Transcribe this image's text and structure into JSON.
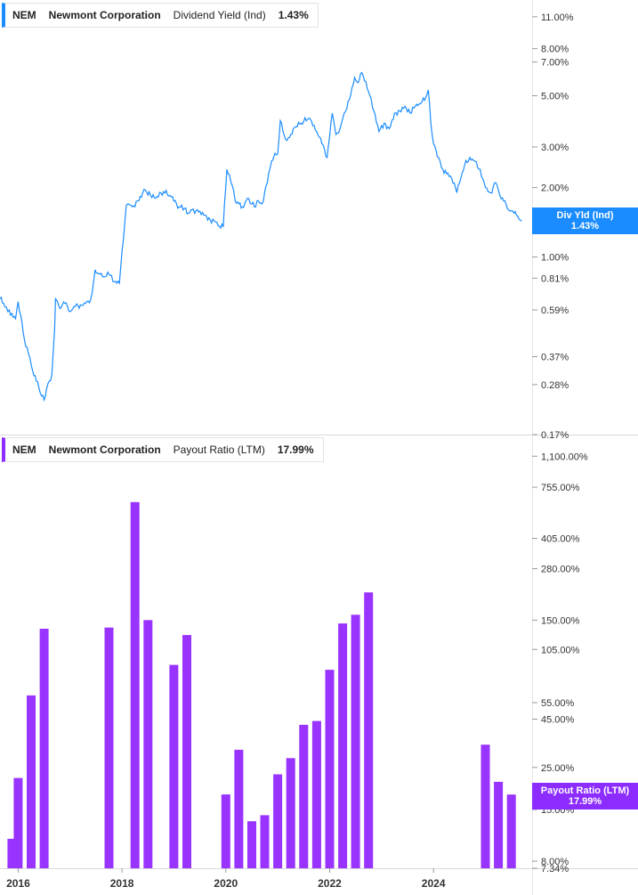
{
  "chart_data": [
    {
      "type": "line",
      "ticker": "NEM",
      "company": "Newmont Corporation",
      "metric": "Dividend Yield (Ind)",
      "current_value": "1.43%",
      "tag_label": "Div Yld (Ind)",
      "tag_value": "1.43%",
      "scale": "log",
      "ylim": [
        0.17,
        13.0
      ],
      "yticks": [
        {
          "value": 11.0,
          "label": "11.00%"
        },
        {
          "value": 8.0,
          "label": "8.00%"
        },
        {
          "value": 7.0,
          "label": "7.00%"
        },
        {
          "value": 5.0,
          "label": "5.00%"
        },
        {
          "value": 3.0,
          "label": "3.00%"
        },
        {
          "value": 2.0,
          "label": "2.00%"
        },
        {
          "value": 1.0,
          "label": "1.00%"
        },
        {
          "value": 0.81,
          "label": "0.81%"
        },
        {
          "value": 0.59,
          "label": "0.59%"
        },
        {
          "value": 0.37,
          "label": "0.37%"
        },
        {
          "value": 0.28,
          "label": "0.28%"
        },
        {
          "value": 0.17,
          "label": "0.17%"
        }
      ],
      "color": "#1a8cff",
      "series": [
        {
          "x": [
            2015.65,
            2015.72,
            2015.8,
            2015.88,
            2015.95,
            2016.0,
            2016.05,
            2016.12,
            2016.2,
            2016.28,
            2016.35,
            2016.4,
            2016.45,
            2016.5,
            2016.55,
            2016.6,
            2016.65,
            2016.7,
            2016.72,
            2016.8,
            2016.9,
            2017.0,
            2017.1,
            2017.2,
            2017.3,
            2017.4,
            2017.45,
            2017.48,
            2017.55,
            2017.65,
            2017.75,
            2017.85,
            2017.95,
            2018.08,
            2018.12,
            2018.2,
            2018.3,
            2018.45,
            2018.55,
            2018.65,
            2018.8,
            2018.95,
            2019.1,
            2019.2,
            2019.28,
            2019.35,
            2019.5,
            2019.6,
            2019.7,
            2019.8,
            2019.88,
            2019.95,
            2020.02,
            2020.12,
            2020.18,
            2020.25,
            2020.32,
            2020.42,
            2020.55,
            2020.6,
            2020.7,
            2020.8,
            2020.88,
            2020.92,
            2021.0,
            2021.05,
            2021.12,
            2021.18,
            2021.25,
            2021.3,
            2021.45,
            2021.6,
            2021.75,
            2021.85,
            2021.95,
            2022.05,
            2022.12,
            2022.2,
            2022.28,
            2022.38,
            2022.48,
            2022.55,
            2022.62,
            2022.75,
            2022.85,
            2022.95,
            2023.05,
            2023.15,
            2023.25,
            2023.35,
            2023.45,
            2023.55,
            2023.65,
            2023.72,
            2023.78,
            2023.85,
            2023.9,
            2023.95,
            2024.0,
            2024.05,
            2024.1,
            2024.18,
            2024.25,
            2024.35,
            2024.45,
            2024.55,
            2024.6,
            2024.7,
            2024.8,
            2024.9,
            2025.0,
            2025.1,
            2025.2,
            2025.28,
            2025.35,
            2025.45,
            2025.55,
            2025.62,
            2025.7
          ],
          "y": [
            0.66,
            0.63,
            0.58,
            0.57,
            0.54,
            0.64,
            0.56,
            0.44,
            0.38,
            0.32,
            0.29,
            0.27,
            0.25,
            0.24,
            0.27,
            0.29,
            0.31,
            0.48,
            0.66,
            0.6,
            0.63,
            0.58,
            0.61,
            0.62,
            0.63,
            0.66,
            0.77,
            0.88,
            0.85,
            0.82,
            0.84,
            0.78,
            0.77,
            1.66,
            1.7,
            1.65,
            1.75,
            1.95,
            1.85,
            1.8,
            1.92,
            1.82,
            1.65,
            1.62,
            1.55,
            1.6,
            1.58,
            1.52,
            1.45,
            1.42,
            1.36,
            1.35,
            2.4,
            2.05,
            1.75,
            1.7,
            1.65,
            1.8,
            1.65,
            1.75,
            1.7,
            2.1,
            2.6,
            2.7,
            2.8,
            3.9,
            3.4,
            3.2,
            3.4,
            3.6,
            3.8,
            4.0,
            3.5,
            3.1,
            2.7,
            4.2,
            3.4,
            3.6,
            4.2,
            4.8,
            6.0,
            5.7,
            6.3,
            5.2,
            4.3,
            3.5,
            3.8,
            3.6,
            4.2,
            4.3,
            4.5,
            4.2,
            4.5,
            4.6,
            4.7,
            4.9,
            5.3,
            3.8,
            3.1,
            2.9,
            2.7,
            2.4,
            2.3,
            2.2,
            1.9,
            2.3,
            2.5,
            2.7,
            2.6,
            2.4,
            2.0,
            1.9,
            2.1,
            1.85,
            1.75,
            1.6,
            1.55,
            1.5,
            1.43
          ]
        }
      ]
    },
    {
      "type": "bar",
      "ticker": "NEM",
      "company": "Newmont Corporation",
      "metric": "Payout Ratio (LTM)",
      "current_value": "17.99%",
      "tag_label": "Payout Ratio (LTM)",
      "tag_value": "17.99%",
      "scale": "log",
      "ylim": [
        7.34,
        1400
      ],
      "yticks": [
        {
          "value": 1100,
          "label": "1,100.00%"
        },
        {
          "value": 755,
          "label": "755.00%"
        },
        {
          "value": 405,
          "label": "405.00%"
        },
        {
          "value": 280,
          "label": "280.00%"
        },
        {
          "value": 150,
          "label": "150.00%"
        },
        {
          "value": 105,
          "label": "105.00%"
        },
        {
          "value": 55,
          "label": "55.00%"
        },
        {
          "value": 45,
          "label": "45.00%"
        },
        {
          "value": 25,
          "label": "25.00%"
        },
        {
          "value": 15,
          "label": "15.00%"
        },
        {
          "value": 8,
          "label": "8.00%"
        },
        {
          "value": 7.34,
          "label": "7.34%"
        }
      ],
      "color": "#9933ff",
      "x": [
        2015.88,
        2016.0,
        2016.25,
        2016.5,
        2017.75,
        2018.25,
        2018.5,
        2019.0,
        2019.25,
        2020.0,
        2020.25,
        2020.5,
        2020.75,
        2021.0,
        2021.25,
        2021.5,
        2021.75,
        2022.0,
        2022.25,
        2022.5,
        2022.75,
        2025.0,
        2025.25,
        2025.5
      ],
      "values": [
        10.5,
        22,
        60,
        135,
        137,
        630,
        150,
        87,
        125,
        18,
        31,
        13,
        14,
        23,
        28,
        42,
        44,
        82,
        144,
        160,
        210,
        33,
        21,
        17.99
      ]
    }
  ],
  "x_axis": {
    "min": 2015.65,
    "max": 2025.9,
    "ticks": [
      {
        "value": 2016,
        "label": "2016"
      },
      {
        "value": 2018,
        "label": "2018"
      },
      {
        "value": 2020,
        "label": "2020"
      },
      {
        "value": 2022,
        "label": "2022"
      },
      {
        "value": 2024,
        "label": "2024"
      }
    ]
  }
}
